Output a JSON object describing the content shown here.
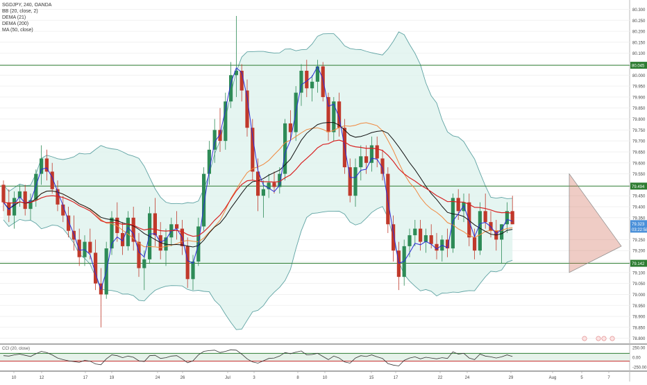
{
  "header": {
    "symbol_line": "SGDJPY, 240, OANDA",
    "indicators": [
      "BB (20, close, 2)",
      "DEMA (21)",
      "DEMA (200)",
      "MA (50, close)"
    ]
  },
  "cci_label": "CCI (20, close)",
  "chart_data": {
    "type": "candlestick",
    "price_axis": {
      "ticks": [
        "80.300",
        "80.250",
        "80.200",
        "80.150",
        "80.100",
        "80.050",
        "80.000",
        "79.950",
        "79.900",
        "79.850",
        "79.800",
        "79.750",
        "79.700",
        "79.650",
        "79.600",
        "79.550",
        "79.450",
        "79.400",
        "79.350",
        "79.250",
        "79.200",
        "79.150",
        "79.100",
        "79.050",
        "79.000",
        "78.950",
        "78.900",
        "78.850",
        "78.800"
      ],
      "ylim": [
        78.78,
        80.33
      ]
    },
    "x_axis_labels": [
      "10",
      "12",
      "17",
      "19",
      "24",
      "26",
      "Jul",
      "3",
      "8",
      "10",
      "15",
      "17",
      "22",
      "24",
      "29",
      "Aug",
      "5",
      "7"
    ],
    "horizontal_levels": [
      {
        "value": 80.045,
        "label": "80.045",
        "color": "#2e7d32"
      },
      {
        "value": 79.494,
        "label": "79.494",
        "color": "#2e7d32"
      },
      {
        "value": 79.142,
        "label": "79.142",
        "color": "#2e7d32"
      }
    ],
    "current_price": {
      "value": 79.323,
      "label": "79.323",
      "countdown": "03:22:58",
      "color": "#4a90d9"
    },
    "ohlc": [
      [
        79.5,
        79.52,
        79.38,
        79.42
      ],
      [
        79.42,
        79.48,
        79.33,
        79.36
      ],
      [
        79.36,
        79.47,
        79.3,
        79.44
      ],
      [
        79.44,
        79.5,
        79.4,
        79.47
      ],
      [
        79.47,
        79.5,
        79.36,
        79.39
      ],
      [
        79.39,
        79.46,
        79.34,
        79.43
      ],
      [
        79.43,
        79.57,
        79.4,
        79.55
      ],
      [
        79.55,
        79.68,
        79.5,
        79.62
      ],
      [
        79.62,
        79.66,
        79.52,
        79.56
      ],
      [
        79.56,
        79.6,
        79.46,
        79.48
      ],
      [
        79.48,
        79.52,
        79.38,
        79.41
      ],
      [
        79.41,
        79.45,
        79.33,
        79.36
      ],
      [
        79.36,
        79.4,
        79.26,
        79.29
      ],
      [
        79.29,
        79.36,
        79.2,
        79.25
      ],
      [
        79.25,
        79.3,
        79.13,
        79.17
      ],
      [
        79.17,
        79.27,
        79.13,
        79.24
      ],
      [
        79.24,
        79.3,
        79.16,
        79.19
      ],
      [
        79.19,
        79.25,
        79.02,
        79.05
      ],
      [
        79.05,
        79.12,
        78.85,
        79.0
      ],
      [
        79.0,
        79.24,
        78.98,
        79.21
      ],
      [
        79.21,
        79.38,
        79.18,
        79.35
      ],
      [
        79.35,
        79.42,
        79.24,
        79.28
      ],
      [
        79.28,
        79.33,
        79.18,
        79.22
      ],
      [
        79.22,
        79.38,
        79.2,
        79.35
      ],
      [
        79.35,
        79.4,
        79.2,
        79.24
      ],
      [
        79.24,
        79.28,
        79.08,
        79.12
      ],
      [
        79.12,
        79.2,
        79.02,
        79.16
      ],
      [
        79.16,
        79.4,
        79.14,
        79.37
      ],
      [
        79.37,
        79.44,
        79.22,
        79.27
      ],
      [
        79.27,
        79.33,
        79.16,
        79.2
      ],
      [
        79.2,
        79.3,
        79.13,
        79.26
      ],
      [
        79.26,
        79.35,
        79.22,
        79.32
      ],
      [
        79.32,
        79.38,
        79.25,
        79.3
      ],
      [
        79.3,
        79.34,
        79.18,
        79.22
      ],
      [
        79.22,
        79.26,
        79.03,
        79.07
      ],
      [
        79.07,
        79.18,
        79.02,
        79.15
      ],
      [
        79.15,
        79.35,
        79.13,
        79.31
      ],
      [
        79.31,
        79.58,
        79.29,
        79.55
      ],
      [
        79.55,
        79.7,
        79.5,
        79.66
      ],
      [
        79.66,
        79.8,
        79.6,
        79.75
      ],
      [
        79.75,
        79.85,
        79.65,
        79.7
      ],
      [
        79.7,
        79.92,
        79.66,
        79.88
      ],
      [
        79.88,
        80.06,
        79.85,
        80.0
      ],
      [
        80.0,
        80.27,
        79.9,
        80.02
      ],
      [
        80.02,
        80.05,
        79.88,
        79.93
      ],
      [
        79.93,
        79.98,
        79.72,
        79.76
      ],
      [
        79.76,
        79.8,
        79.52,
        79.56
      ],
      [
        79.56,
        79.62,
        79.38,
        79.45
      ],
      [
        79.45,
        79.52,
        79.35,
        79.48
      ],
      [
        79.48,
        79.55,
        79.44,
        79.51
      ],
      [
        79.51,
        79.56,
        79.46,
        79.49
      ],
      [
        79.49,
        79.58,
        79.46,
        79.55
      ],
      [
        79.55,
        79.8,
        79.52,
        79.78
      ],
      [
        79.78,
        79.84,
        79.7,
        79.74
      ],
      [
        79.74,
        79.95,
        79.7,
        79.92
      ],
      [
        79.92,
        80.05,
        79.86,
        80.02
      ],
      [
        80.02,
        80.07,
        79.9,
        79.94
      ],
      [
        79.94,
        80.0,
        79.88,
        79.97
      ],
      [
        79.97,
        80.07,
        79.92,
        80.04
      ],
      [
        80.04,
        80.06,
        79.88,
        79.9
      ],
      [
        79.9,
        79.92,
        79.7,
        79.74
      ],
      [
        79.74,
        79.9,
        79.7,
        79.88
      ],
      [
        79.88,
        79.92,
        79.72,
        79.76
      ],
      [
        79.76,
        79.8,
        79.55,
        79.58
      ],
      [
        79.58,
        79.62,
        79.42,
        79.45
      ],
      [
        79.45,
        79.62,
        79.4,
        79.58
      ],
      [
        79.58,
        79.68,
        79.52,
        79.63
      ],
      [
        79.63,
        79.68,
        79.55,
        79.6
      ],
      [
        79.6,
        79.72,
        79.56,
        79.68
      ],
      [
        79.68,
        79.72,
        79.58,
        79.62
      ],
      [
        79.62,
        79.66,
        79.52,
        79.55
      ],
      [
        79.55,
        79.58,
        79.28,
        79.32
      ],
      [
        79.32,
        79.36,
        79.15,
        79.2
      ],
      [
        79.2,
        79.24,
        79.02,
        79.08
      ],
      [
        79.08,
        79.25,
        79.04,
        79.22
      ],
      [
        79.22,
        79.3,
        79.17,
        79.27
      ],
      [
        79.27,
        79.34,
        79.22,
        79.3
      ],
      [
        79.3,
        79.34,
        79.2,
        79.24
      ],
      [
        79.24,
        79.3,
        79.19,
        79.27
      ],
      [
        79.27,
        79.32,
        79.21,
        79.23
      ],
      [
        79.23,
        79.28,
        79.16,
        79.2
      ],
      [
        79.2,
        79.27,
        79.15,
        79.25
      ],
      [
        79.25,
        79.3,
        79.17,
        79.21
      ],
      [
        79.21,
        79.46,
        79.19,
        79.44
      ],
      [
        79.44,
        79.48,
        79.34,
        79.38
      ],
      [
        79.38,
        79.46,
        79.33,
        79.42
      ],
      [
        79.42,
        79.46,
        79.22,
        79.26
      ],
      [
        79.26,
        79.3,
        79.16,
        79.2
      ],
      [
        79.2,
        79.42,
        79.18,
        79.38
      ],
      [
        79.38,
        79.46,
        79.3,
        79.33
      ],
      [
        79.33,
        79.38,
        79.26,
        79.29
      ],
      [
        79.29,
        79.34,
        79.2,
        79.25
      ],
      [
        79.25,
        79.32,
        79.14,
        79.32
      ],
      [
        79.32,
        79.42,
        79.28,
        79.38
      ],
      [
        79.38,
        79.45,
        79.32,
        79.32
      ]
    ],
    "cci_axis": {
      "ticks": [
        "250.00",
        "0.00",
        "-250.00"
      ],
      "ylim": [
        -300,
        300
      ]
    },
    "cci": [
      40,
      30,
      60,
      80,
      50,
      20,
      90,
      150,
      120,
      60,
      -20,
      -60,
      -90,
      -110,
      -130,
      -80,
      -100,
      -170,
      -190,
      -40,
      60,
      40,
      -10,
      30,
      0,
      -90,
      -110,
      40,
      50,
      -30,
      -10,
      30,
      40,
      -40,
      -140,
      -90,
      60,
      150,
      170,
      180,
      120,
      150,
      190,
      180,
      80,
      -40,
      -120,
      -150,
      -90,
      -30,
      -20,
      30,
      120,
      90,
      130,
      160,
      60,
      70,
      100,
      20,
      -60,
      30,
      -20,
      -120,
      -150,
      -20,
      40,
      20,
      60,
      10,
      -30,
      -160,
      -200,
      -220,
      -80,
      -20,
      10,
      -40,
      0,
      -20,
      -40,
      -10,
      -30,
      140,
      80,
      100,
      -20,
      -60,
      80,
      30,
      10,
      -20,
      10,
      60,
      20
    ],
    "cci_levels": [
      {
        "value": 100,
        "color": "#2e7d32"
      },
      {
        "value": -100,
        "color": "#c62828"
      }
    ],
    "colors": {
      "up": "#2e8b57",
      "down": "#c0392b",
      "bb": "#5fa3a3",
      "bb_fill": "#dff2ee",
      "dema21": "#2b2bd6",
      "dema200": "#d82222",
      "ma50": "#f0883e",
      "sma": "#111111"
    }
  }
}
